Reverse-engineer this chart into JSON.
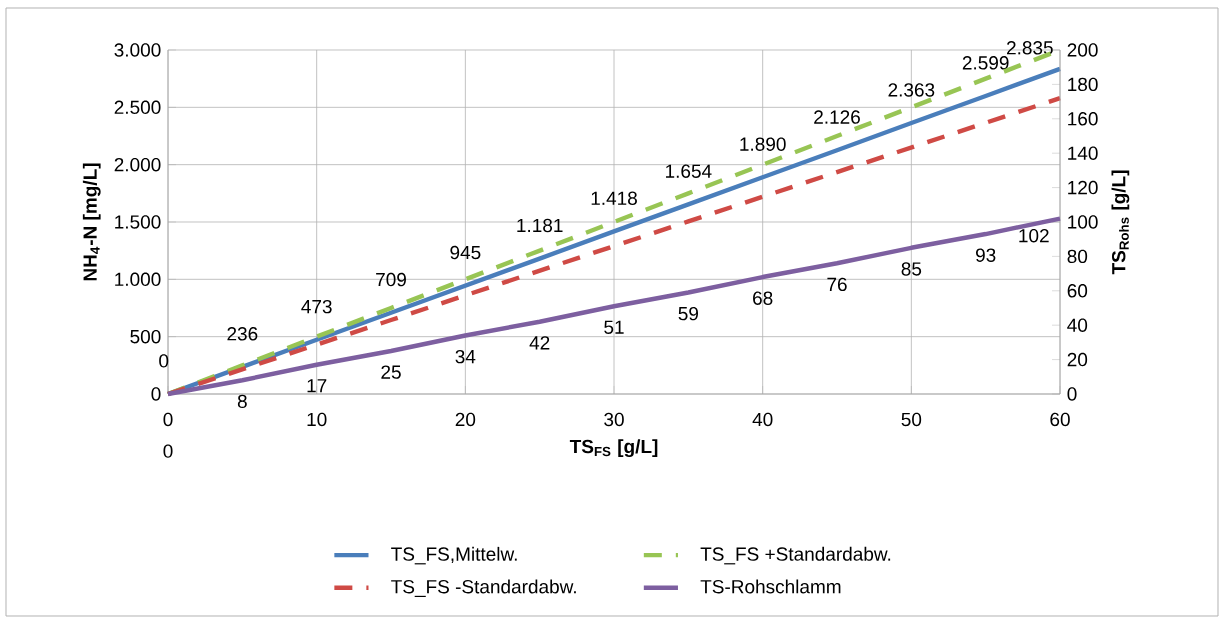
{
  "chart_data": {
    "type": "line",
    "xlabel": "TS$_{FS}$ [g/L]",
    "ylabel": "NH$_{4}$-N [mg/L]",
    "y2label": "TS$_{Rohs}$ [g/L]",
    "xlim": [
      0,
      60
    ],
    "xticks": [
      0,
      10,
      20,
      30,
      40,
      50,
      60
    ],
    "ylim": [
      0,
      3000
    ],
    "yticks": [
      0,
      500,
      {
        "value": 1000,
        "label": "1.000"
      },
      {
        "value": 1500,
        "label": "1.500"
      },
      {
        "value": 2000,
        "label": "2.000"
      },
      {
        "value": 2500,
        "label": "2.500"
      },
      {
        "value": 3000,
        "label": "3.000"
      }
    ],
    "y2lim": [
      0,
      200
    ],
    "y2ticks": [
      0,
      20,
      40,
      60,
      80,
      100,
      120,
      140,
      160,
      180,
      200
    ],
    "grid": true,
    "legend": "bottom",
    "x": [
      0,
      5,
      10,
      15,
      20,
      25,
      30,
      35,
      40,
      45,
      50,
      55,
      60
    ],
    "series": [
      {
        "name": "TS_FS,Mittelw.",
        "color": "#4a7ebb",
        "line_style": "solid",
        "values": [
          0,
          236,
          473,
          709,
          945,
          1181,
          1418,
          1654,
          1890,
          2126,
          2363,
          2599,
          2835
        ],
        "value_labels": [
          "0",
          "236",
          "473",
          "709",
          "945",
          "1.181",
          "1.418",
          "1.654",
          "1.890",
          "2.126",
          "2.363",
          "2.599",
          "2.835"
        ]
      },
      {
        "name": "TS_FS +Standardabw.",
        "color": "#98c554",
        "line_style": "dashed",
        "values": [
          0,
          250,
          500,
          750,
          1000,
          1250,
          1500,
          1750,
          2000,
          2250,
          2500,
          2750,
          3000
        ]
      },
      {
        "name": "TS_FS -Standardabw.",
        "color": "#cf4a45",
        "line_style": "dashed",
        "values": [
          0,
          215,
          430,
          645,
          860,
          1075,
          1290,
          1505,
          1720,
          1935,
          2150,
          2365,
          2580
        ]
      },
      {
        "name": "TS-Rohschlamm",
        "color": "#7d5fa0",
        "line_style": "solid",
        "axis": "y2",
        "values": [
          0,
          8,
          17,
          25,
          34,
          42,
          51,
          59,
          68,
          76,
          85,
          93,
          102
        ],
        "value_labels": [
          "0",
          "8",
          "17",
          "25",
          "34",
          "42",
          "51",
          "59",
          "68",
          "76",
          "85",
          "93",
          "102"
        ]
      }
    ]
  }
}
